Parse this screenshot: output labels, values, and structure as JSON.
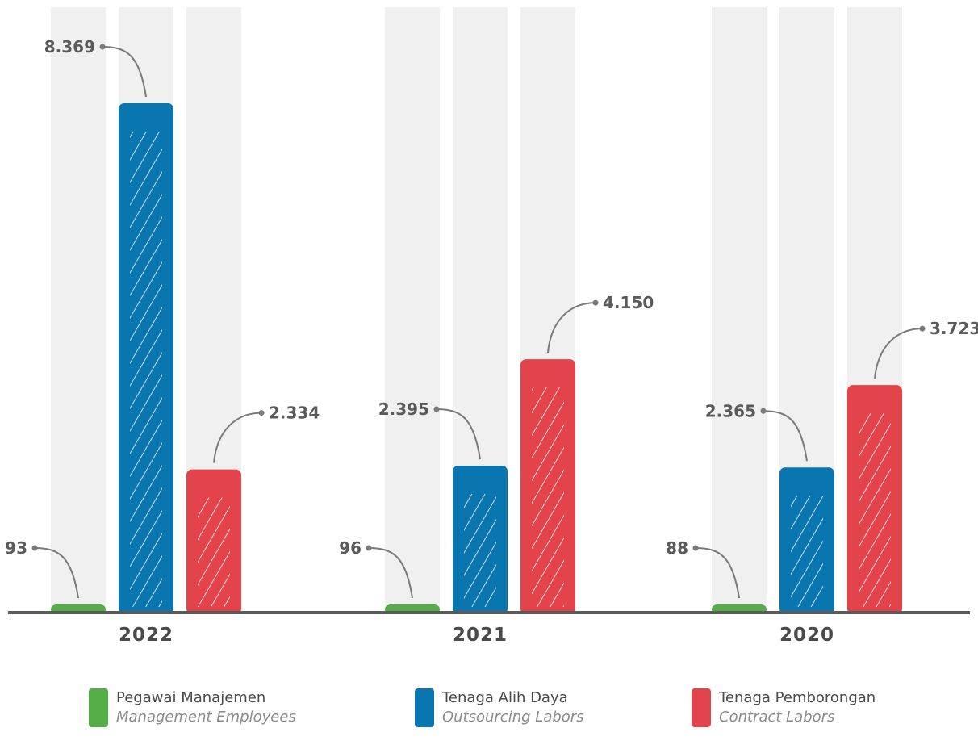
{
  "chart_data": {
    "type": "bar",
    "categories": [
      "2022",
      "2021",
      "2020"
    ],
    "series": [
      {
        "name": "Pegawai Manajemen",
        "name_en": "Management Employees",
        "color": "#55ad47",
        "values": [
          93,
          96,
          88
        ],
        "labels": [
          "93",
          "96",
          "88"
        ]
      },
      {
        "name": "Tenaga Alih Daya",
        "name_en": "Outsourcing Labors",
        "color": "#0a76b0",
        "values": [
          8369,
          2395,
          2365
        ],
        "labels": [
          "8.369",
          "2.395",
          "2.365"
        ]
      },
      {
        "name": "Tenaga Pemborongan",
        "name_en": "Contract Labors",
        "color": "#e3434b",
        "values": [
          2334,
          4150,
          3723
        ],
        "labels": [
          "2.334",
          "4.150",
          "3.723"
        ]
      }
    ],
    "ylim": [
      0,
      9000
    ],
    "grid": false,
    "legend_position": "bottom",
    "background_band_color": "#f0f0f0",
    "axis_color": "#5a5a5a"
  }
}
